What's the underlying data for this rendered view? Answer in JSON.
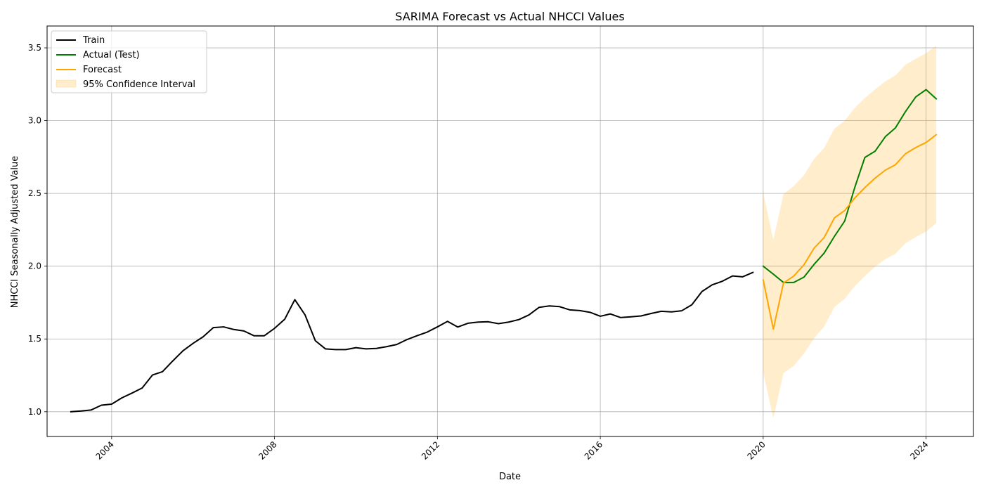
{
  "chart_data": {
    "type": "line",
    "title": "SARIMA Forecast vs Actual NHCCI Values",
    "xlabel": "Date",
    "ylabel": "NHCCI Seasonally Adjusted Value",
    "x_is_date": true,
    "xlim": [
      "2002-06-01",
      "2025-03-01"
    ],
    "ylim": [
      0.83,
      3.65
    ],
    "xticks": [
      "2004-01-01",
      "2008-01-01",
      "2012-01-01",
      "2016-01-01",
      "2020-01-01",
      "2024-01-01"
    ],
    "xtick_labels": [
      "2004",
      "2008",
      "2012",
      "2016",
      "2020",
      "2024"
    ],
    "yticks": [
      1.0,
      1.5,
      2.0,
      2.5,
      3.0,
      3.5
    ],
    "ytick_labels": [
      "1.0",
      "1.5",
      "2.0",
      "2.5",
      "3.0",
      "3.5"
    ],
    "grid": true,
    "legend_position": "top-left",
    "colors": {
      "train": "#000000",
      "actual": "#008000",
      "forecast": "#ffa500",
      "ci": "#ffa500",
      "grid": "#b0b0b0"
    },
    "series": [
      {
        "name": "Train",
        "key": "train",
        "x": [
          "2003-01-01",
          "2003-04-01",
          "2003-07-01",
          "2003-10-01",
          "2004-01-01",
          "2004-04-01",
          "2004-07-01",
          "2004-10-01",
          "2005-01-01",
          "2005-04-01",
          "2005-07-01",
          "2005-10-01",
          "2006-01-01",
          "2006-04-01",
          "2006-07-01",
          "2006-10-01",
          "2007-01-01",
          "2007-04-01",
          "2007-07-01",
          "2007-10-01",
          "2008-01-01",
          "2008-04-01",
          "2008-07-01",
          "2008-10-01",
          "2009-01-01",
          "2009-04-01",
          "2009-07-01",
          "2009-10-01",
          "2010-01-01",
          "2010-04-01",
          "2010-07-01",
          "2010-10-01",
          "2011-01-01",
          "2011-04-01",
          "2011-07-01",
          "2011-10-01",
          "2012-01-01",
          "2012-04-01",
          "2012-07-01",
          "2012-10-01",
          "2013-01-01",
          "2013-04-01",
          "2013-07-01",
          "2013-10-01",
          "2014-01-01",
          "2014-04-01",
          "2014-07-01",
          "2014-10-01",
          "2015-01-01",
          "2015-04-01",
          "2015-07-01",
          "2015-10-01",
          "2016-01-01",
          "2016-04-01",
          "2016-07-01",
          "2016-10-01",
          "2017-01-01",
          "2017-04-01",
          "2017-07-01",
          "2017-10-01",
          "2018-01-01",
          "2018-04-01",
          "2018-07-01",
          "2018-10-01",
          "2019-01-01",
          "2019-04-01",
          "2019-07-01",
          "2019-10-01"
        ],
        "y": [
          1.0,
          1.005,
          1.012,
          1.045,
          1.052,
          1.095,
          1.128,
          1.163,
          1.252,
          1.275,
          1.348,
          1.418,
          1.47,
          1.515,
          1.578,
          1.583,
          1.565,
          1.555,
          1.522,
          1.522,
          1.573,
          1.635,
          1.77,
          1.665,
          1.488,
          1.432,
          1.427,
          1.427,
          1.44,
          1.432,
          1.435,
          1.447,
          1.462,
          1.495,
          1.522,
          1.547,
          1.583,
          1.621,
          1.582,
          1.608,
          1.616,
          1.618,
          1.605,
          1.616,
          1.633,
          1.665,
          1.717,
          1.727,
          1.722,
          1.7,
          1.695,
          1.683,
          1.656,
          1.672,
          1.647,
          1.652,
          1.658,
          1.675,
          1.69,
          1.686,
          1.694,
          1.735,
          1.826,
          1.872,
          1.897,
          1.933,
          1.927,
          1.957
        ]
      },
      {
        "name": "Actual (Test)",
        "key": "actual",
        "x": [
          "2020-01-01",
          "2020-04-01",
          "2020-07-01",
          "2020-10-01",
          "2021-01-01",
          "2021-04-01",
          "2021-07-01",
          "2021-10-01",
          "2022-01-01",
          "2022-04-01",
          "2022-07-01",
          "2022-10-01",
          "2023-01-01",
          "2023-04-01",
          "2023-07-01",
          "2023-10-01",
          "2024-01-01",
          "2024-04-01"
        ],
        "y": [
          2.0,
          1.945,
          1.888,
          1.888,
          1.925,
          2.012,
          2.09,
          2.205,
          2.31,
          2.54,
          2.747,
          2.79,
          2.89,
          2.95,
          3.063,
          3.163,
          3.213,
          3.15
        ]
      },
      {
        "name": "Forecast",
        "key": "forecast",
        "x": [
          "2020-01-01",
          "2020-04-01",
          "2020-07-01",
          "2020-10-01",
          "2021-01-01",
          "2021-04-01",
          "2021-07-01",
          "2021-10-01",
          "2022-01-01",
          "2022-04-01",
          "2022-07-01",
          "2022-10-01",
          "2023-01-01",
          "2023-04-01",
          "2023-07-01",
          "2023-10-01",
          "2024-01-01",
          "2024-04-01"
        ],
        "y": [
          1.905,
          1.568,
          1.885,
          1.932,
          2.01,
          2.123,
          2.197,
          2.332,
          2.382,
          2.468,
          2.54,
          2.605,
          2.66,
          2.697,
          2.773,
          2.815,
          2.85,
          2.903
        ]
      },
      {
        "name": "95% Confidence Interval",
        "key": "ci",
        "x": [
          "2020-01-01",
          "2020-04-01",
          "2020-07-01",
          "2020-10-01",
          "2021-01-01",
          "2021-04-01",
          "2021-07-01",
          "2021-10-01",
          "2022-01-01",
          "2022-04-01",
          "2022-07-01",
          "2022-10-01",
          "2023-01-01",
          "2023-04-01",
          "2023-07-01",
          "2023-10-01",
          "2024-01-01",
          "2024-04-01"
        ],
        "lower": [
          1.27,
          0.955,
          1.265,
          1.315,
          1.4,
          1.505,
          1.585,
          1.72,
          1.775,
          1.862,
          1.932,
          1.997,
          2.048,
          2.085,
          2.158,
          2.2,
          2.238,
          2.295
        ],
        "upper": [
          2.505,
          2.18,
          2.495,
          2.55,
          2.625,
          2.737,
          2.812,
          2.945,
          3.0,
          3.087,
          3.155,
          3.215,
          3.27,
          3.31,
          3.385,
          3.425,
          3.463,
          3.515
        ]
      }
    ]
  }
}
